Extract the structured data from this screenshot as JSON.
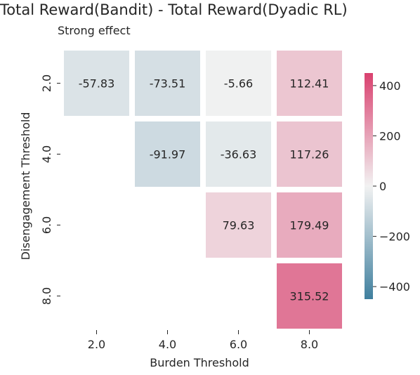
{
  "chart_data": {
    "type": "heatmap",
    "title": "Total Reward(Bandit) - Total Reward(Dyadic RL)",
    "subtitle": "Strong effect",
    "xlabel": "Burden Threshold",
    "ylabel": "Disengagement Threshold",
    "x_categories": [
      "2.0",
      "4.0",
      "6.0",
      "8.0"
    ],
    "y_categories": [
      "2.0",
      "4.0",
      "6.0",
      "8.0"
    ],
    "values": [
      [
        -57.83,
        -73.51,
        -5.66,
        112.41
      ],
      [
        null,
        -91.97,
        -36.63,
        117.26
      ],
      [
        null,
        null,
        79.63,
        179.49
      ],
      [
        null,
        null,
        null,
        315.52
      ]
    ],
    "labels": [
      [
        "-57.83",
        "-73.51",
        "-5.66",
        "112.41"
      ],
      [
        "",
        "-91.97",
        "-36.63",
        "117.26"
      ],
      [
        "",
        "",
        "79.63",
        "179.49"
      ],
      [
        "",
        "",
        "",
        "315.52"
      ]
    ],
    "colorbar": {
      "vmin": -450,
      "vmax": 450,
      "ticks": [
        -400,
        -200,
        0,
        200,
        400
      ],
      "tick_labels": [
        "−400",
        "−200",
        "0",
        "200",
        "400"
      ],
      "colors": {
        "low": "#3f7f9e",
        "mid": "#f2f2f2",
        "high": "#d9416f"
      }
    }
  }
}
